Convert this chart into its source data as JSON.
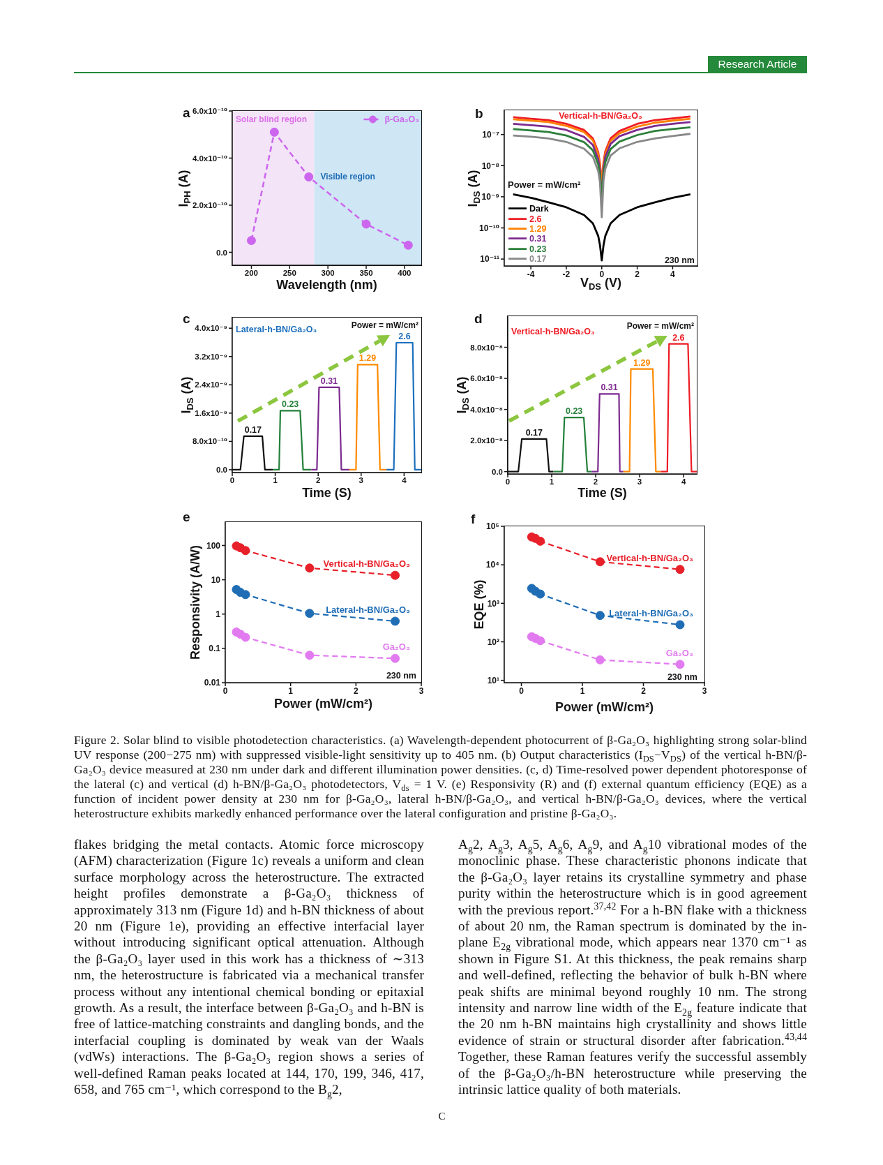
{
  "chart_data": [
    {
      "type": "other",
      "annotations": [
        "Research Article"
      ]
    },
    {
      "type": "line",
      "title": "a",
      "xlabel": "Wavelength (nm)",
      "ylabel": "I$_{PH}$ (A)",
      "x": [
        200,
        230,
        275,
        350,
        405
      ],
      "series": [
        {
          "name": "β-Ga₂O₃",
          "color": "#cc66ee",
          "values": [
            5e-11,
            5.1e-10,
            3.2e-10,
            1.2e-10,
            3e-11
          ]
        }
      ],
      "xlim": [
        175,
        422
      ],
      "xticks": [
        200,
        250,
        300,
        350,
        400
      ],
      "ylim": [
        -5.5e-11,
        6e-10
      ],
      "yticks": [
        {
          "value": 0,
          "label": "0.0"
        },
        {
          "value": 2e-10,
          "label": "2.0x10⁻¹⁰"
        },
        {
          "value": 4e-10,
          "label": "4.0x10⁻¹⁰"
        },
        {
          "value": 6e-10,
          "label": "6.0x10⁻¹⁰"
        }
      ],
      "bands": [
        {
          "axis": "x",
          "from": 175,
          "to": 282,
          "label": "Solar blind region",
          "color": "#f3e4f8"
        },
        {
          "axis": "x",
          "from": 282,
          "to": 422,
          "label": "Visible region",
          "color": "#cfe6f4"
        }
      ],
      "legend": "top right",
      "marker": "circle",
      "line_style": "dashed"
    },
    {
      "type": "line",
      "title": "b",
      "subtitle": "Vertical-h-BN/Ga₂O₃",
      "xlabel": "V$_{DS}$ (V)",
      "ylabel": "I$_{DS}$ (A)",
      "legend_title": "Power = mW/cm²",
      "annotations": [
        "230 nm"
      ],
      "x": [
        -5,
        -4,
        -3,
        -2,
        -1,
        -0.5,
        -0.2,
        -0.1,
        0,
        0.1,
        0.2,
        0.5,
        1,
        2,
        3,
        4,
        5
      ],
      "series": [
        {
          "name": "Dark",
          "color": "#000000",
          "values": [
            1.2e-09,
            9.3e-10,
            6.6e-10,
            4.6e-10,
            2.6e-10,
            1.4e-10,
            5.5e-11,
            2.8e-11,
            9e-12,
            2.8e-11,
            5.5e-11,
            1.4e-10,
            2.6e-10,
            4.6e-10,
            6.6e-10,
            9.3e-10,
            1.2e-09
          ]
        },
        {
          "name": "2.6",
          "color": "#ee1c25",
          "values": [
            3.6e-07,
            3.2e-07,
            2.9e-07,
            2.2e-07,
            1.4e-07,
            7.5e-08,
            2.7e-08,
            1.2e-08,
            2.6e-09,
            1.3e-08,
            2.9e-08,
            7.6e-08,
            1.3e-07,
            2.2e-07,
            2.9e-07,
            3.3e-07,
            3.8e-07
          ]
        },
        {
          "name": "1.29",
          "color": "#ff8000",
          "values": [
            3.1e-07,
            2.8e-07,
            2.5e-07,
            1.9e-07,
            1.2e-07,
            6.5e-08,
            2.3e-08,
            1e-08,
            3.2e-09,
            1.1e-08,
            2.4e-08,
            6.3e-08,
            1.1e-07,
            1.8e-07,
            2.4e-07,
            2.8e-07,
            3.2e-07
          ]
        },
        {
          "name": "0.31",
          "color": "#7d2a90",
          "values": [
            2.2e-07,
            2e-07,
            1.8e-07,
            1.4e-07,
            8.4e-08,
            4.6e-08,
            1.6e-08,
            7e-09,
            7e-10,
            8e-09,
            1.9e-08,
            5e-08,
            8.8e-08,
            1.4e-07,
            1.9e-07,
            2.2e-07,
            2.5e-07
          ]
        },
        {
          "name": "0.23",
          "color": "#2c7f3a",
          "values": [
            1.5e-07,
            1.35e-07,
            1.2e-07,
            9.3e-08,
            5.7e-08,
            3.1e-08,
            1.1e-08,
            4.8e-09,
            1.1e-09,
            5.5e-09,
            1.3e-08,
            3.4e-08,
            5.9e-08,
            9.6e-08,
            1.3e-07,
            1.5e-07,
            1.7e-07
          ]
        },
        {
          "name": "0.17",
          "color": "#888888",
          "values": [
            9.3e-08,
            8.5e-08,
            7.5e-08,
            5.8e-08,
            3.5e-08,
            1.9e-08,
            6.7e-09,
            2.9e-09,
            2.2e-10,
            3.4e-09,
            8e-09,
            2.1e-08,
            3.6e-08,
            5.8e-08,
            7.5e-08,
            8.9e-08,
            1.05e-07
          ]
        }
      ],
      "xlim": [
        -5.5,
        5.4
      ],
      "xticks": [
        -4,
        -2,
        0,
        2,
        4
      ],
      "ylim": [
        6e-12,
        6e-07
      ],
      "yticks": [
        {
          "value": 1e-11,
          "label": "10⁻¹¹"
        },
        {
          "value": 1e-10,
          "label": "10⁻¹⁰"
        },
        {
          "value": 1e-09,
          "label": "10⁻⁹"
        },
        {
          "value": 1e-08,
          "label": "10⁻⁸"
        },
        {
          "value": 1e-07,
          "label": "10⁻⁷"
        }
      ],
      "log": "y",
      "legend": "bottom left"
    },
    {
      "type": "line",
      "title": "c",
      "subtitle": "Lateral-h-BN/Ga₂O₃",
      "xlabel": "Time (S)",
      "ylabel": "I$_{DS}$ (A)",
      "annotations": [
        "Power = mW/cm²"
      ],
      "series": [
        {
          "name": "0.17",
          "color": "#111111",
          "x": [
            0,
            0.19,
            0.27,
            0.7,
            0.76,
            0.95
          ],
          "values": [
            0,
            0,
            9.5e-10,
            9.5e-10,
            0,
            0
          ]
        },
        {
          "name": "0.23",
          "color": "#23803a",
          "x": [
            0.95,
            1.09,
            1.12,
            1.58,
            1.65,
            1.84
          ],
          "values": [
            0,
            0,
            1.67e-09,
            1.67e-09,
            0,
            0
          ]
        },
        {
          "name": "0.31",
          "color": "#7d2a90",
          "x": [
            1.84,
            1.97,
            2.02,
            2.49,
            2.54,
            2.73
          ],
          "values": [
            0,
            0,
            2.33e-09,
            2.33e-09,
            0,
            0
          ]
        },
        {
          "name": "1.29",
          "color": "#ff8a00",
          "x": [
            2.73,
            2.88,
            2.92,
            3.38,
            3.44,
            3.59
          ],
          "values": [
            0,
            0,
            2.97e-09,
            2.97e-09,
            0,
            0
          ]
        },
        {
          "name": "2.6",
          "color": "#1c6fbd",
          "x": [
            3.59,
            3.76,
            3.82,
            4.2,
            4.25,
            4.4
          ],
          "values": [
            0,
            0,
            3.59e-09,
            3.59e-09,
            0,
            0
          ]
        }
      ],
      "xlim": [
        0,
        4.4
      ],
      "xticks": [
        0,
        1,
        2,
        3,
        4
      ],
      "ylim": [
        -8e-11,
        4.3e-09
      ],
      "yticks": [
        {
          "value": 0,
          "label": "0.0"
        },
        {
          "value": 8e-10,
          "label": "8.0x10⁻¹⁰"
        },
        {
          "value": 1.6e-09,
          "label": "1.6x10⁻⁹"
        },
        {
          "value": 2.4e-09,
          "label": "2.4x10⁻⁹"
        },
        {
          "value": 3.2e-09,
          "label": "3.2x10⁻⁹"
        },
        {
          "value": 4e-09,
          "label": "4.0x10⁻⁹"
        }
      ]
    },
    {
      "type": "line",
      "title": "d",
      "subtitle": "Vertical-h-BN/Ga₂O₃",
      "xlabel": "Time (S)",
      "ylabel": "I$_{DS}$ (A)",
      "annotations": [
        "Power = mW/cm²"
      ],
      "series": [
        {
          "name": "0.17",
          "color": "#111111",
          "x": [
            0,
            0.24,
            0.32,
            0.88,
            0.94,
            1.04
          ],
          "values": [
            0,
            0,
            2.1e-08,
            2.1e-08,
            0,
            0
          ]
        },
        {
          "name": "0.23",
          "color": "#23803a",
          "x": [
            1.04,
            1.24,
            1.29,
            1.73,
            1.81,
            1.91
          ],
          "values": [
            0,
            0,
            3.48e-08,
            3.48e-08,
            0,
            0
          ]
        },
        {
          "name": "0.31",
          "color": "#7d2a90",
          "x": [
            1.91,
            2.05,
            2.09,
            2.53,
            2.55,
            2.63
          ],
          "values": [
            0,
            0,
            5e-08,
            5e-08,
            0,
            0
          ]
        },
        {
          "name": "1.29",
          "color": "#ff8a00",
          "x": [
            2.63,
            2.77,
            2.8,
            3.3,
            3.37,
            3.48
          ],
          "values": [
            0,
            0,
            6.6e-08,
            6.6e-08,
            0,
            0
          ]
        },
        {
          "name": "2.6",
          "color": "#ee1c25",
          "x": [
            3.48,
            3.63,
            3.67,
            4.1,
            4.18,
            4.3
          ],
          "values": [
            0,
            0,
            8.22e-08,
            8.22e-08,
            0,
            0
          ]
        }
      ],
      "xlim": [
        0,
        4.3
      ],
      "xticks": [
        0,
        1,
        2,
        3,
        4
      ],
      "ylim": [
        -1.5e-09,
        1e-07
      ],
      "yticks": [
        {
          "value": 0,
          "label": "0.0"
        },
        {
          "value": 2e-08,
          "label": "2.0x10⁻⁸"
        },
        {
          "value": 4e-08,
          "label": "4.0x10⁻⁸"
        },
        {
          "value": 6e-08,
          "label": "6.0x10⁻⁸"
        },
        {
          "value": 8e-08,
          "label": "8.0x10⁻⁸"
        }
      ]
    },
    {
      "type": "line",
      "title": "e",
      "xlabel": "Power (mW/cm²)",
      "ylabel": "Responsivity (A/W)",
      "annotations": [
        "230 nm"
      ],
      "x": [
        0.17,
        0.23,
        0.31,
        1.29,
        2.6
      ],
      "series": [
        {
          "name": "Vertical-h-BN/Ga₂O₃",
          "color": "#e8202a",
          "values": [
            97,
            86,
            71,
            22,
            13.5
          ]
        },
        {
          "name": "Lateral-h-BN/Ga₂O₃",
          "color": "#1f6db5",
          "values": [
            5.2,
            4.3,
            3.7,
            1.05,
            0.62
          ]
        },
        {
          "name": "Ga₂O₃",
          "color": "#e27af0",
          "values": [
            0.3,
            0.26,
            0.21,
            0.063,
            0.051
          ]
        }
      ],
      "xlim": [
        0,
        3
      ],
      "xticks": [
        0,
        1,
        2,
        3
      ],
      "ylim": [
        0.01,
        480
      ],
      "yticks": [
        0.01,
        0.1,
        1,
        10,
        100
      ],
      "log": "y",
      "marker": "circle",
      "line_style": "dashed"
    },
    {
      "type": "line",
      "title": "f",
      "xlabel": "Power (mW/cm²)",
      "ylabel": "EQE (%)",
      "annotations": [
        "230 nm"
      ],
      "x": [
        0.17,
        0.23,
        0.31,
        1.29,
        2.6
      ],
      "series": [
        {
          "name": "Vertical-h-BN/Ga₂O₃",
          "color": "#e8202a",
          "values": [
            53000,
            48500,
            41000,
            12000,
            7600
          ]
        },
        {
          "name": "Lateral-h-BN/Ga₂O₃",
          "color": "#1f6db5",
          "values": [
            2440,
            2060,
            1740,
            485,
            278
          ]
        },
        {
          "name": "Ga₂O₃",
          "color": "#e27af0",
          "values": [
            136,
            123,
            107,
            34,
            26
          ]
        }
      ],
      "xlim": [
        -0.28,
        3
      ],
      "xticks": [
        0,
        1,
        2,
        3
      ],
      "ylim": [
        8.7,
        100000
      ],
      "yticks": [
        {
          "value": 10,
          "label": "10¹"
        },
        {
          "value": 100,
          "label": "10²"
        },
        {
          "value": 1000,
          "label": "10³"
        },
        {
          "value": 10000,
          "label": "10⁴"
        },
        {
          "value": 100000,
          "label": "10⁵"
        }
      ],
      "log": "y",
      "marker": "circle",
      "line_style": "dashed"
    },
    {
      "type": "other",
      "annotations": [
        "Figure 2. Solar blind to visible photodetection characteristics. (a) Wavelength-dependent photocurrent of β-Ga₂O₃ highlighting strong solar-blind UV response (200−275 nm) with suppressed visible-light sensitivity up to 405 nm. (b) Output characteristics (I$_{DS}$−V$_{DS}$) of the vertical h-BN/β-Ga₂O₃ device measured at 230 nm under dark and different illumination power densities. (c, d) Time-resolved power dependent photoresponse of the lateral (c) and vertical (d) h-BN/β-Ga₂O₃ photodetectors, V$_{ds}$ = 1 V. (e) Responsivity (R) and (f) external quantum efficiency (EQE) as a function of incident power density at 230 nm for β-Ga₂O₃, lateral h-BN/β-Ga₂O₃, and vertical h-BN/β-Ga₂O₃ devices, where the vertical heterostructure exhibits markedly enhanced performance over the lateral configuration and pristine β-Ga₂O₃.",
        "flakes bridging the metal contacts. Atomic force microscopy (AFM) characterization (Figure 1c) reveals a uniform and clean surface morphology across the heterostructure. The extracted height profiles demonstrate a β-Ga₂O₃ thickness of approximately 313 nm (Figure 1d) and h-BN thickness of about 20 nm (Figure 1e), providing an effective interfacial layer without introducing significant optical attenuation. Although the β-Ga₂O₃ layer used in this work has a thickness of ∼313 nm, the heterostructure is fabricated via a mechanical transfer process without any intentional chemical bonding or epitaxial growth. As a result, the interface between β-Ga₂O₃ and h-BN is free of lattice-matching constraints and dangling bonds, and the interfacial coupling is dominated by weak van der Waals (vdWs) interactions. The β-Ga₂O₃ region shows a series of well-defined Raman peaks located at 144, 170, 199, 346, 417, 658, and 765 cm⁻¹, which correspond to the B$_{g}$2,",
        "A$_{g}$2, A$_{g}$3, A$_{g}$5, A$_{g}$6, A$_{g}$9, and A$_{g}$10 vibrational modes of the monoclinic phase. These characteristic phonons indicate that the β-Ga₂O₃ layer retains its crystalline symmetry and phase purity within the heterostructure which is in good agreement with the previous report.$^{37,42}$ For a h-BN flake with a thickness of about 20 nm, the Raman spectrum is dominated by the in-plane E$_{2g}$ vibrational mode, which appears near 1370 cm⁻¹ as shown in Figure S1. At this thickness, the peak remains sharp and well-defined, reflecting the behavior of bulk h-BN where peak shifts are minimal beyond roughly 10 nm. The strong intensity and narrow line width of the E$_{2g}$ feature indicate that the 20 nm h-BN maintains high crystallinity and shows little evidence of strain or structural disorder after fabrication.$^{43,44}$ Together, these Raman features verify the successful assembly of the β-Ga₂O₃/h-BN heterostructure while preserving the intrinsic lattice quality of both materials.",
        "C"
      ]
    }
  ]
}
